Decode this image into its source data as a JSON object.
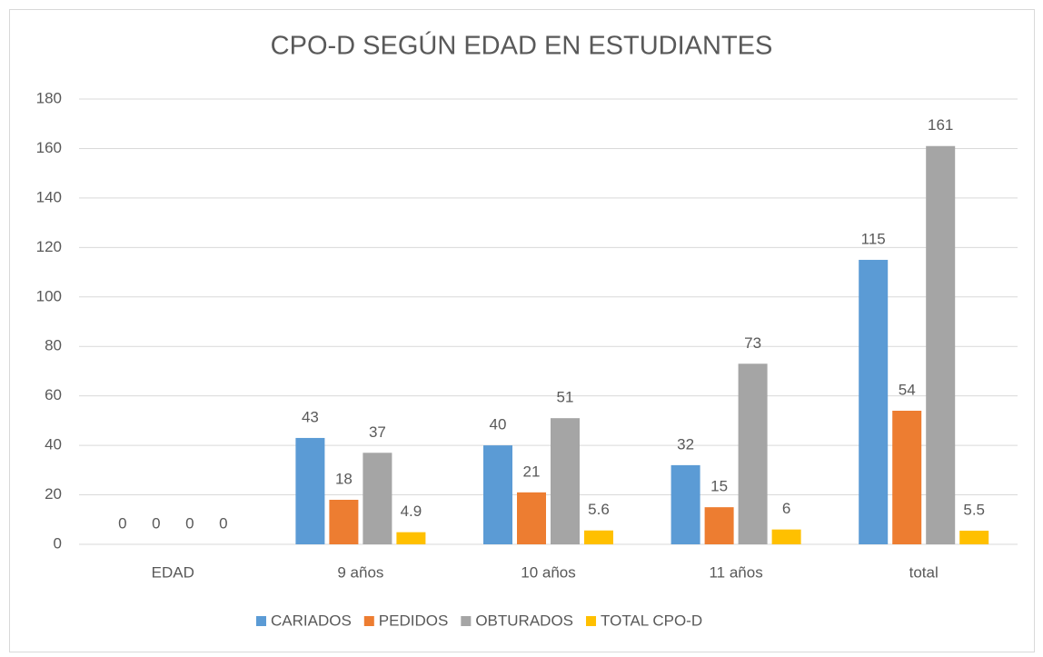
{
  "chart_data": {
    "type": "bar",
    "title": "CPO-D SEGÚN EDAD EN ESTUDIANTES",
    "categories": [
      "EDAD",
      "9 años",
      "10 años",
      "11 años",
      "total"
    ],
    "series": [
      {
        "name": "CARIADOS",
        "color": "#5b9bd5",
        "values": [
          0,
          43,
          40,
          32,
          115
        ]
      },
      {
        "name": "PEDIDOS",
        "color": "#ed7d31",
        "values": [
          0,
          18,
          21,
          15,
          54
        ]
      },
      {
        "name": "OBTURADOS",
        "color": "#a5a5a5",
        "values": [
          0,
          37,
          51,
          73,
          161
        ]
      },
      {
        "name": "TOTAL CPO-D",
        "color": "#ffc000",
        "values": [
          0,
          4.9,
          5.6,
          6,
          5.5
        ]
      }
    ],
    "ylim": [
      0,
      180
    ],
    "yticks": [
      0,
      20,
      40,
      60,
      80,
      100,
      120,
      140,
      160,
      180
    ],
    "grid": true,
    "legend": "bottom"
  }
}
